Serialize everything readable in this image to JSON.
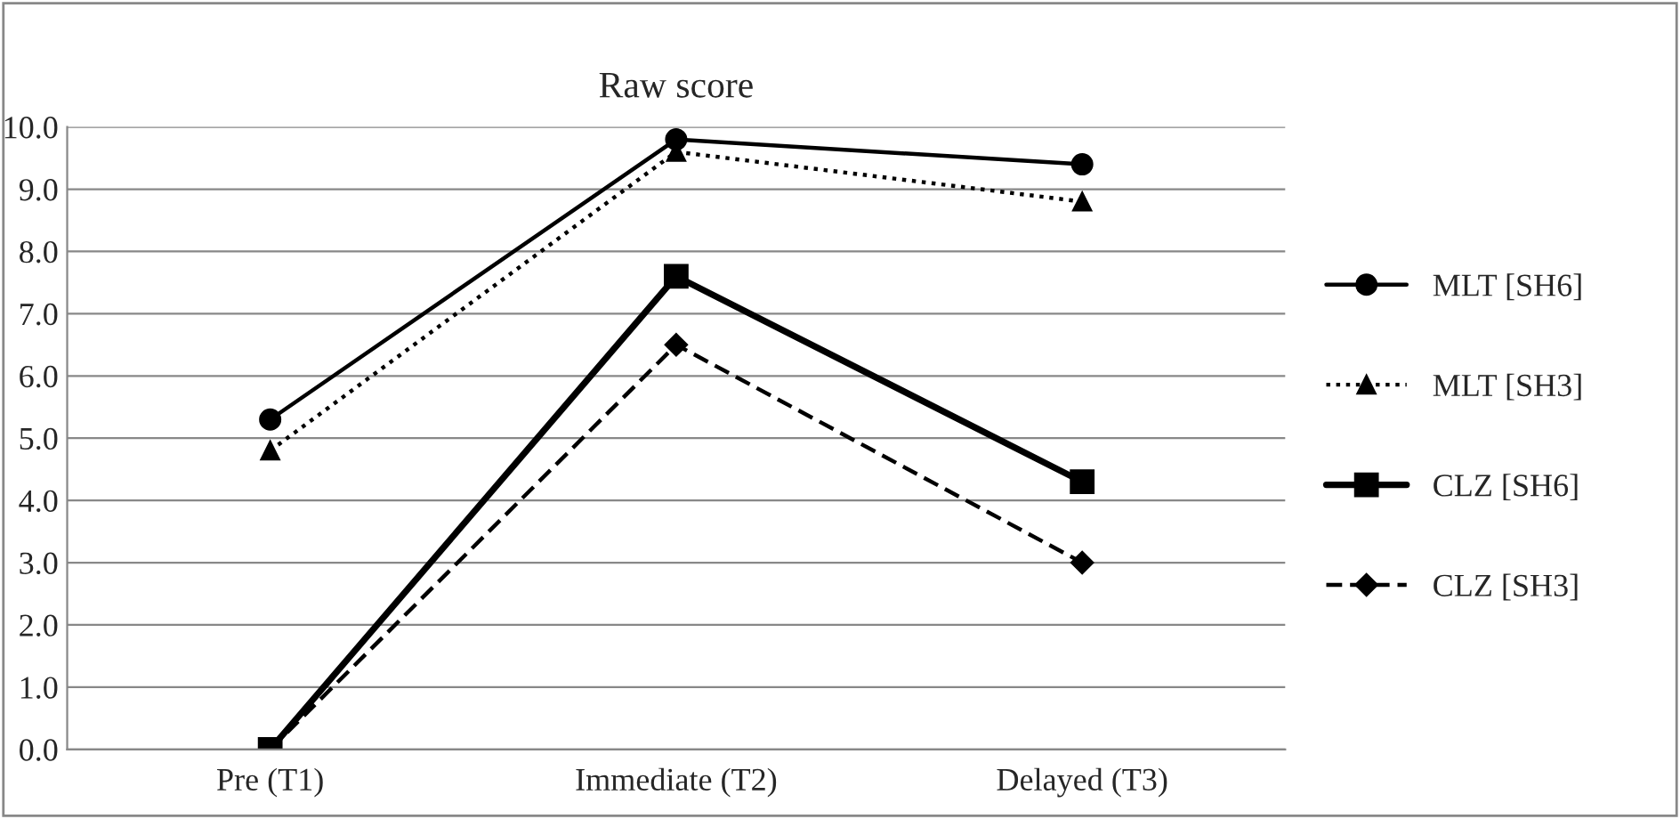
{
  "chart_data": {
    "type": "line",
    "title": "Raw score",
    "categories": [
      "Pre (T1)",
      "Immediate (T2)",
      "Delayed (T3)"
    ],
    "series": [
      {
        "name": "MLT [SH6]",
        "color": "#000000",
        "marker": "circle",
        "line_style": "solid",
        "values": [
          5.3,
          9.8,
          9.4
        ]
      },
      {
        "name": "MLT [SH3]",
        "color": "#000000",
        "marker": "triangle",
        "line_style": "dotted",
        "values": [
          4.8,
          9.6,
          8.8
        ]
      },
      {
        "name": "CLZ [SH6]",
        "color": "#000000",
        "marker": "square",
        "line_style": "solid",
        "values": [
          0.0,
          7.6,
          4.3
        ]
      },
      {
        "name": "CLZ [SH3]",
        "color": "#000000",
        "marker": "diamond",
        "line_style": "dashed",
        "values": [
          0.0,
          6.5,
          3.0
        ]
      }
    ],
    "ylim": [
      0,
      10
    ],
    "yticks": [
      {
        "value": 0,
        "label": "0.0"
      },
      {
        "value": 1,
        "label": "1.0"
      },
      {
        "value": 2,
        "label": "2.0"
      },
      {
        "value": 3,
        "label": "3.0"
      },
      {
        "value": 4,
        "label": "4.0"
      },
      {
        "value": 5,
        "label": "5.0"
      },
      {
        "value": 6,
        "label": "6.0"
      },
      {
        "value": 7,
        "label": "7.0"
      },
      {
        "value": 8,
        "label": "8.0"
      },
      {
        "value": 9,
        "label": "9.0"
      },
      {
        "value": 10,
        "label": "10.0"
      }
    ],
    "grid": "y",
    "legend": "right"
  }
}
